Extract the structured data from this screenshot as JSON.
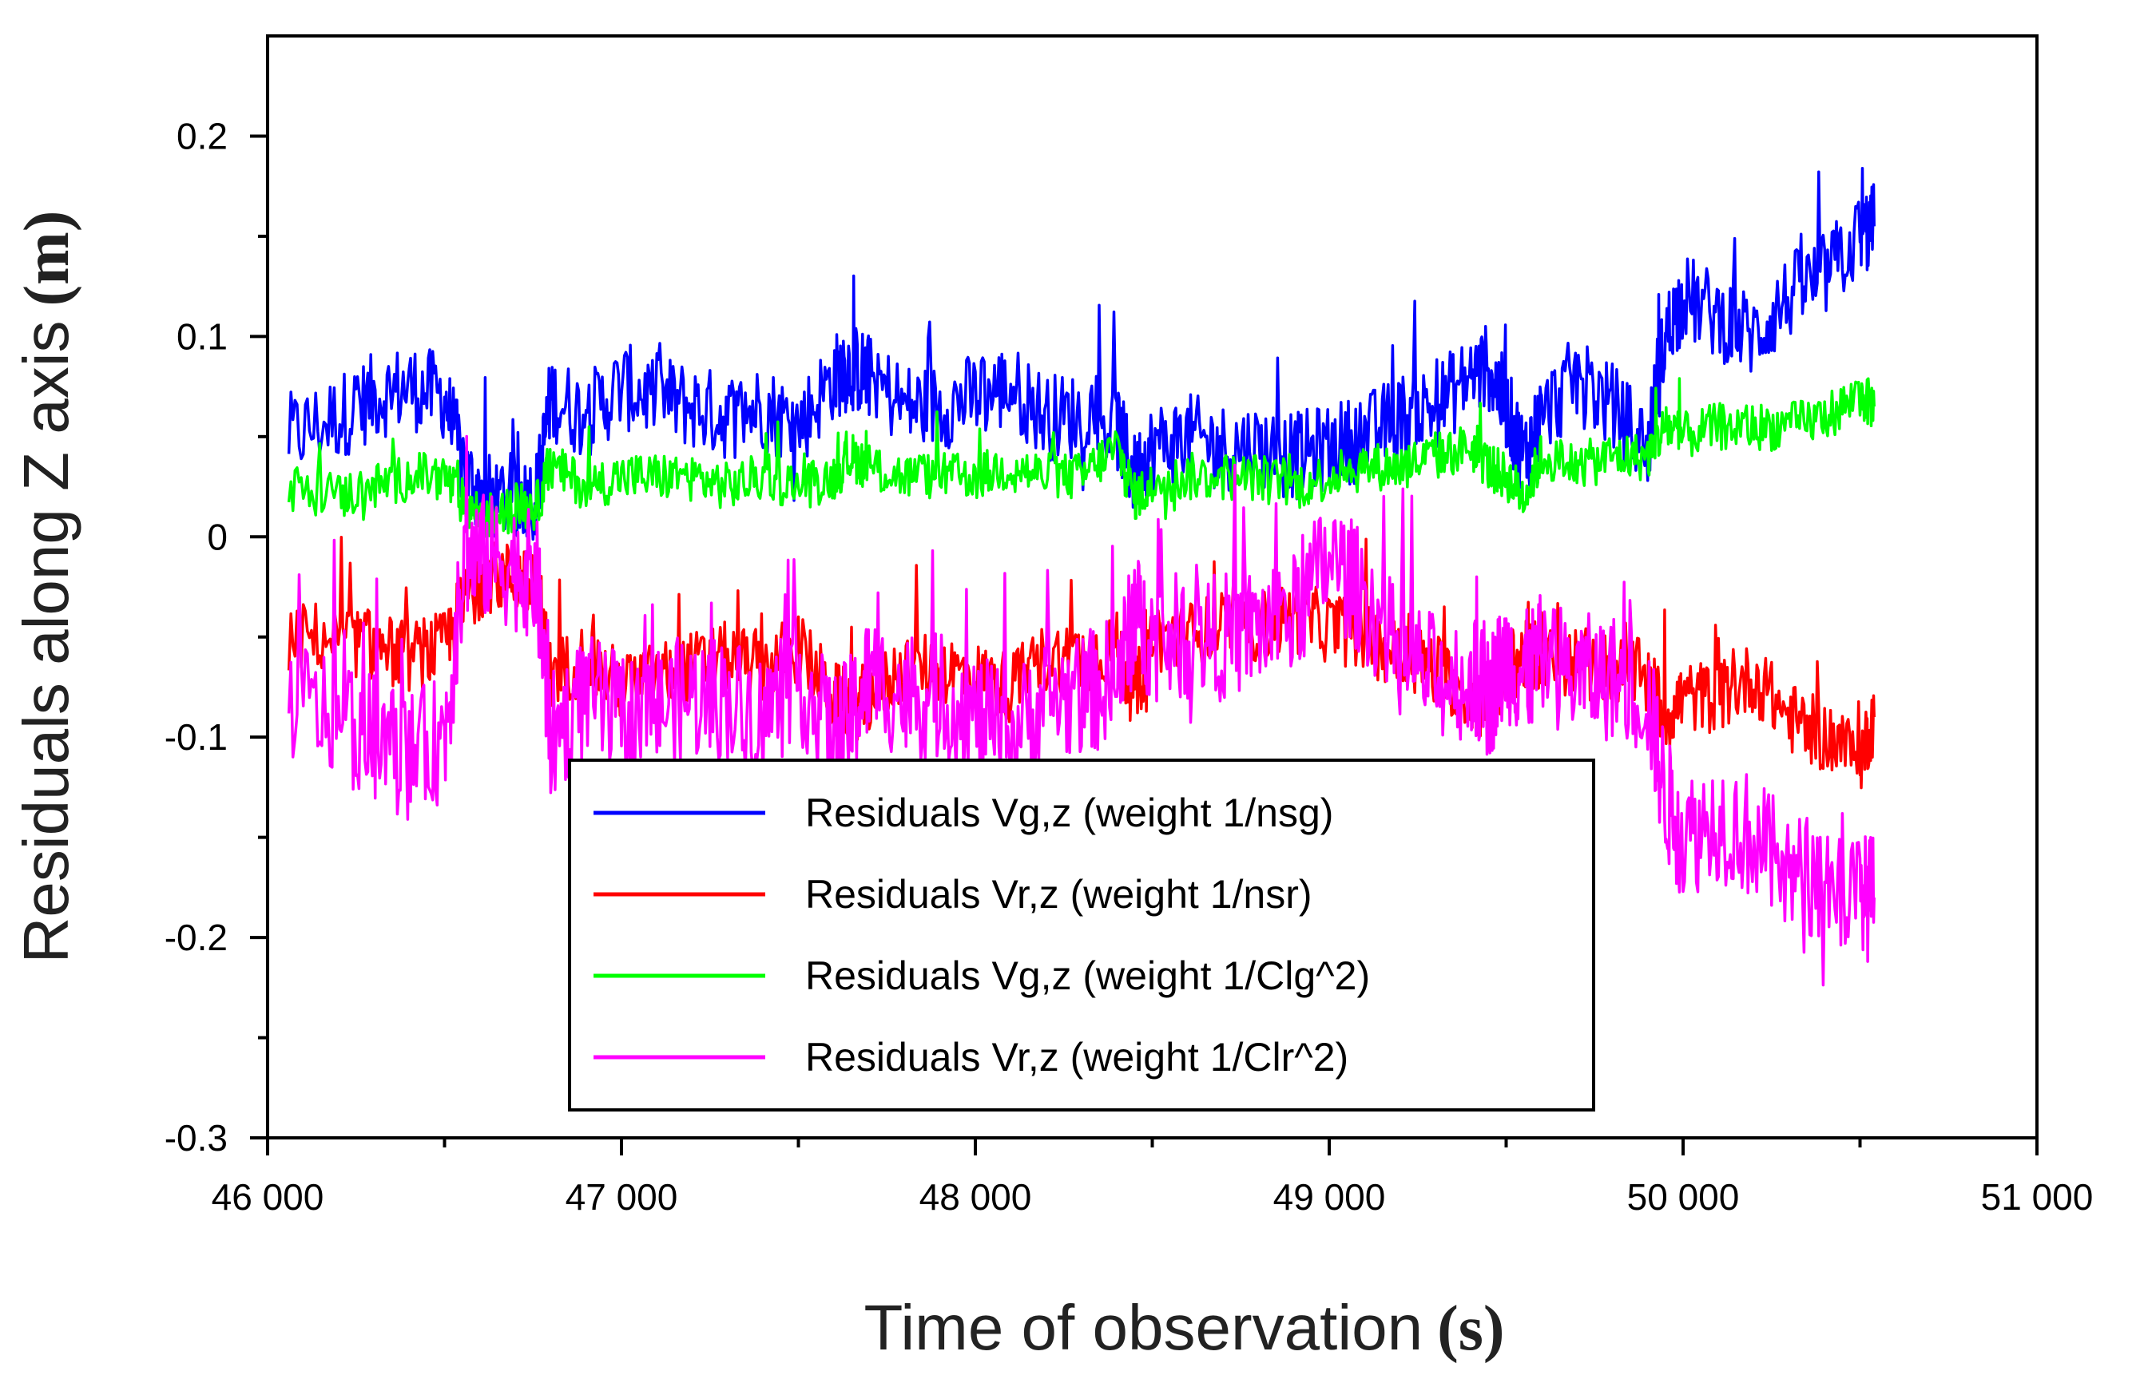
{
  "chart_data": {
    "type": "line",
    "xlabel": "Time of observation",
    "xlabel_unit": "(s)",
    "ylabel": "Residuals along Z axis",
    "ylabel_unit": "(m)",
    "xlim": [
      46000,
      51000
    ],
    "ylim": [
      -0.3,
      0.25
    ],
    "x_ticks": [
      46000,
      47000,
      48000,
      49000,
      50000,
      51000
    ],
    "x_tick_labels": [
      "46 000",
      "47 000",
      "48 000",
      "49 000",
      "50 000",
      "51 000"
    ],
    "y_ticks": [
      -0.3,
      -0.2,
      -0.1,
      0,
      0.1,
      0.2
    ],
    "y_tick_labels": [
      "-0.3",
      "-0.2",
      "-0.1",
      "0",
      "0.1",
      "0.2"
    ],
    "grid": false,
    "legend_position": "lower-center",
    "series": [
      {
        "name": "Residuals Vg,z (weight 1/nsg)",
        "color": "#0000ff",
        "x": [
          46060,
          46200,
          46300,
          46400,
          46500,
          46560,
          46620,
          46700,
          46760,
          46800,
          46900,
          47000,
          47100,
          47200,
          47300,
          47400,
          47500,
          47600,
          47650,
          47700,
          47800,
          47900,
          48000,
          48100,
          48200,
          48300,
          48400,
          48450,
          48500,
          48600,
          48700,
          48800,
          48900,
          49000,
          49100,
          49200,
          49300,
          49400,
          49450,
          49500,
          49550,
          49600,
          49700,
          49800,
          49900,
          49950,
          50000,
          50100,
          50200,
          50300,
          50400,
          50500,
          50540
        ],
        "y": [
          0.05,
          0.06,
          0.07,
          0.075,
          0.07,
          0.03,
          0.02,
          0.02,
          0.02,
          0.07,
          0.06,
          0.075,
          0.07,
          0.065,
          0.06,
          0.065,
          0.055,
          0.08,
          0.085,
          0.08,
          0.065,
          0.065,
          0.07,
          0.075,
          0.06,
          0.06,
          0.055,
          0.03,
          0.045,
          0.05,
          0.045,
          0.045,
          0.04,
          0.045,
          0.05,
          0.06,
          0.065,
          0.08,
          0.085,
          0.065,
          0.04,
          0.06,
          0.08,
          0.065,
          0.045,
          0.1,
          0.12,
          0.11,
          0.1,
          0.12,
          0.13,
          0.15,
          0.155
        ]
      },
      {
        "name": "Residuals Vr,z (weight 1/nsr)",
        "color": "#ff0000",
        "x": [
          46060,
          46200,
          46300,
          46400,
          46500,
          46560,
          46620,
          46700,
          46760,
          46800,
          46900,
          47000,
          47100,
          47200,
          47300,
          47400,
          47500,
          47600,
          47650,
          47700,
          47800,
          47900,
          48000,
          48100,
          48200,
          48300,
          48400,
          48450,
          48500,
          48600,
          48700,
          48800,
          48900,
          49000,
          49100,
          49200,
          49300,
          49400,
          49450,
          49500,
          49550,
          49600,
          49700,
          49800,
          49900,
          49950,
          50000,
          50100,
          50200,
          50300,
          50400,
          50500,
          50540
        ],
        "y": [
          -0.05,
          -0.05,
          -0.055,
          -0.06,
          -0.055,
          -0.03,
          -0.02,
          -0.02,
          -0.02,
          -0.07,
          -0.06,
          -0.075,
          -0.07,
          -0.065,
          -0.06,
          -0.065,
          -0.055,
          -0.08,
          -0.085,
          -0.08,
          -0.065,
          -0.065,
          -0.07,
          -0.075,
          -0.06,
          -0.06,
          -0.055,
          -0.08,
          -0.05,
          -0.05,
          -0.045,
          -0.045,
          -0.04,
          -0.045,
          -0.05,
          -0.06,
          -0.065,
          -0.08,
          -0.085,
          -0.065,
          -0.06,
          -0.06,
          -0.065,
          -0.065,
          -0.07,
          -0.09,
          -0.08,
          -0.08,
          -0.07,
          -0.09,
          -0.1,
          -0.11,
          -0.09
        ]
      },
      {
        "name": "Residuals Vg,z (weight 1/Clg^2)",
        "color": "#00ff00",
        "x": [
          46060,
          46200,
          46300,
          46400,
          46500,
          46560,
          46620,
          46700,
          46760,
          46800,
          46900,
          47000,
          47100,
          47200,
          47300,
          47400,
          47500,
          47600,
          47650,
          47700,
          47800,
          47900,
          48000,
          48100,
          48200,
          48300,
          48400,
          48450,
          48500,
          48600,
          48700,
          48800,
          48900,
          49000,
          49100,
          49200,
          49300,
          49400,
          49450,
          49500,
          49550,
          49600,
          49700,
          49800,
          49900,
          49950,
          50000,
          50100,
          50200,
          50300,
          50400,
          50500,
          50540
        ],
        "y": [
          0.025,
          0.02,
          0.025,
          0.03,
          0.03,
          0.015,
          0.01,
          0.015,
          0.015,
          0.035,
          0.025,
          0.03,
          0.03,
          0.03,
          0.025,
          0.03,
          0.025,
          0.03,
          0.04,
          0.035,
          0.03,
          0.03,
          0.03,
          0.035,
          0.03,
          0.03,
          0.045,
          0.02,
          0.025,
          0.03,
          0.03,
          0.03,
          0.025,
          0.03,
          0.035,
          0.035,
          0.04,
          0.045,
          0.035,
          0.03,
          0.02,
          0.04,
          0.035,
          0.04,
          0.04,
          0.055,
          0.05,
          0.055,
          0.055,
          0.055,
          0.06,
          0.07,
          0.065
        ]
      },
      {
        "name": "Residuals Vr,z (weight 1/Clr^2)",
        "color": "#ff00ff",
        "x": [
          46060,
          46200,
          46300,
          46400,
          46500,
          46560,
          46620,
          46700,
          46760,
          46800,
          46900,
          47000,
          47100,
          47200,
          47300,
          47400,
          47500,
          47600,
          47650,
          47700,
          47800,
          47900,
          48000,
          48100,
          48200,
          48300,
          48400,
          48450,
          48500,
          48600,
          48700,
          48800,
          48900,
          49000,
          49100,
          49200,
          49300,
          49400,
          49450,
          49500,
          49550,
          49600,
          49700,
          49800,
          49900,
          49950,
          50000,
          50100,
          50200,
          50300,
          50400,
          50500,
          50540
        ],
        "y": [
          -0.08,
          -0.09,
          -0.1,
          -0.11,
          -0.1,
          -0.01,
          -0.01,
          -0.015,
          -0.02,
          -0.1,
          -0.08,
          -0.09,
          -0.085,
          -0.08,
          -0.08,
          -0.09,
          -0.07,
          -0.1,
          -0.09,
          -0.07,
          -0.08,
          -0.08,
          -0.09,
          -0.1,
          -0.08,
          -0.08,
          -0.07,
          -0.04,
          -0.05,
          -0.05,
          -0.05,
          -0.045,
          -0.04,
          -0.01,
          -0.03,
          -0.06,
          -0.07,
          -0.07,
          -0.08,
          -0.06,
          -0.07,
          -0.06,
          -0.07,
          -0.07,
          -0.08,
          -0.13,
          -0.15,
          -0.14,
          -0.15,
          -0.17,
          -0.17,
          -0.18,
          -0.18
        ]
      }
    ]
  }
}
